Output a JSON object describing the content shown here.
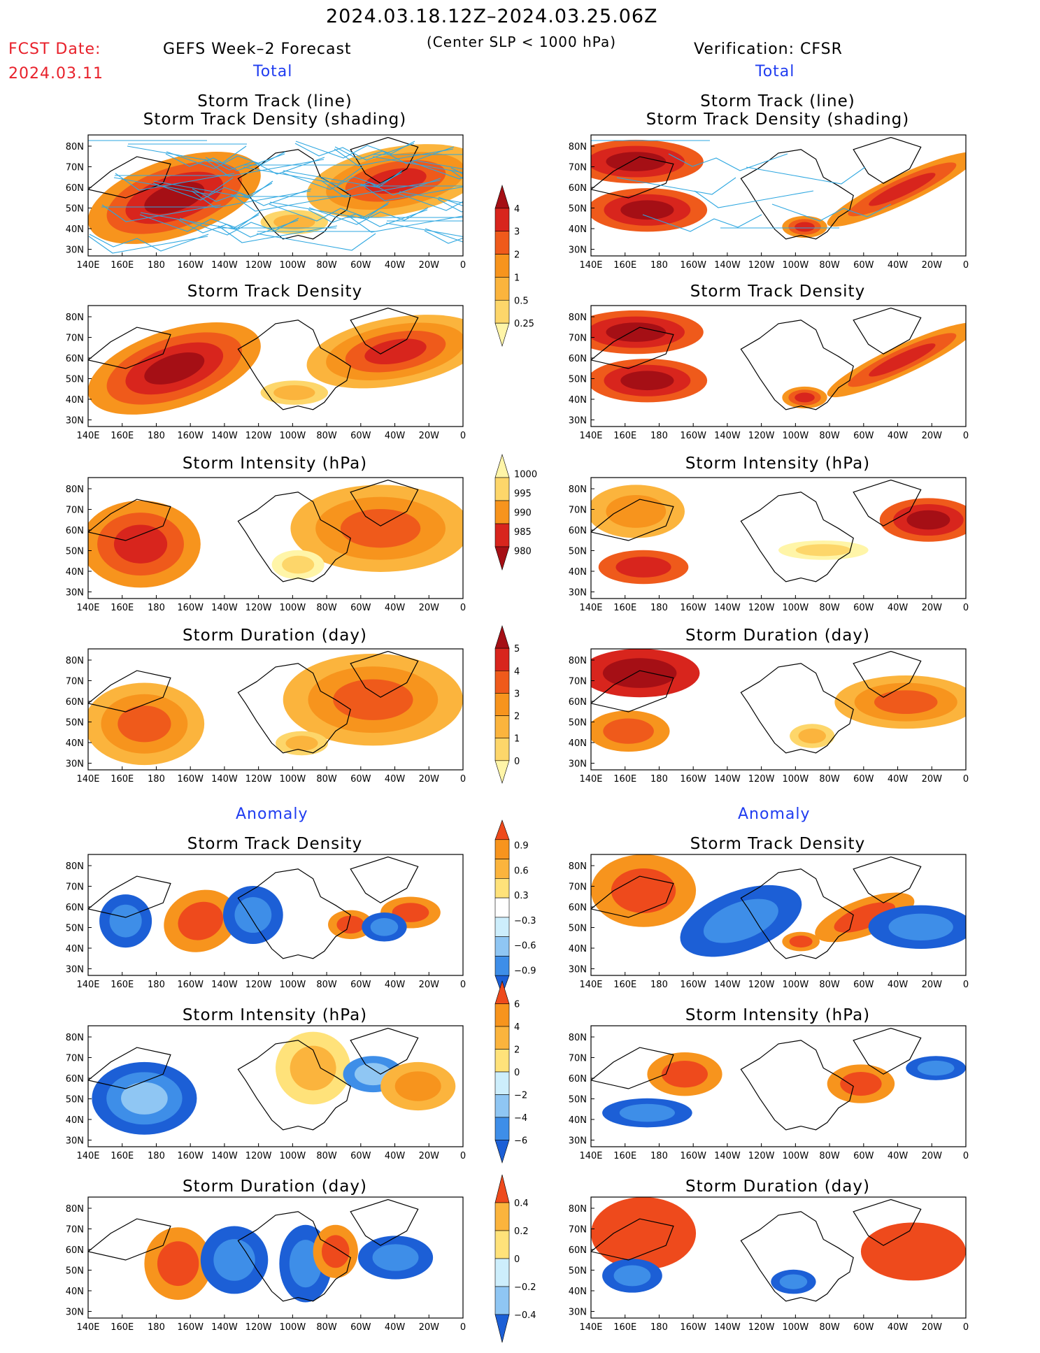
{
  "header": {
    "period": "2024.03.18.12Z–2024.03.25.06Z",
    "criterion": "(Center SLP < 1000 hPa)",
    "fcst_label": "FCST Date:",
    "fcst_date": "2024.03.11",
    "left_title": "GEFS Week–2 Forecast",
    "right_title": "Verification: CFSR",
    "total_label": "Total",
    "anomaly_label": "Anomaly"
  },
  "panel_titles": {
    "track_line": "Storm Track (line)",
    "track_shading": "Storm Track Density (shading)",
    "density": "Storm Track Density",
    "intensity": "Storm Intensity (hPa)",
    "duration": "Storm Duration (day)"
  },
  "axes": {
    "lon_labels": [
      "140E",
      "160E",
      "180",
      "160W",
      "140W",
      "120W",
      "100W",
      "80W",
      "60W",
      "40W",
      "20W",
      "0"
    ],
    "lat_labels": [
      "80N",
      "70N",
      "60N",
      "50N",
      "40N",
      "30N"
    ]
  },
  "colorbars": {
    "density_total": [
      "4",
      "3",
      "2",
      "1",
      "0.5",
      "0.25"
    ],
    "intensity_total": [
      "1000",
      "995",
      "990",
      "985",
      "980"
    ],
    "duration_total": [
      "5",
      "4",
      "3",
      "2",
      "1",
      "0"
    ],
    "density_anom": [
      "0.9",
      "0.6",
      "0.3",
      "−0.3",
      "−0.6",
      "−0.9"
    ],
    "intensity_anom": [
      "6",
      "4",
      "2",
      "0",
      "−2",
      "−4",
      "−6"
    ],
    "duration_anom": [
      "0.4",
      "0.2",
      "0",
      "−0.2",
      "−0.4"
    ]
  },
  "palette": {
    "warm": [
      "#fff5a8",
      "#fdd66a",
      "#fbb43d",
      "#f7941d",
      "#ef5a1b",
      "#d8251d",
      "#a50f15"
    ],
    "anom": [
      "#1c5fd6",
      "#3e8ee8",
      "#8fc6f3",
      "#cdeefc",
      "#ffffff",
      "#ffe27a",
      "#fbb43d",
      "#f7941d",
      "#ee4a1c"
    ],
    "track_line": "#2ea7e0"
  }
}
